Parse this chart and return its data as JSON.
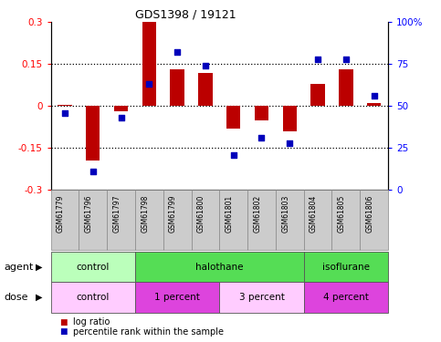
{
  "title": "GDS1398 / 19121",
  "samples": [
    "GSM61779",
    "GSM61796",
    "GSM61797",
    "GSM61798",
    "GSM61799",
    "GSM61800",
    "GSM61801",
    "GSM61802",
    "GSM61803",
    "GSM61804",
    "GSM61805",
    "GSM61806"
  ],
  "log_ratio": [
    0.005,
    -0.195,
    -0.02,
    0.3,
    0.13,
    0.12,
    -0.08,
    -0.05,
    -0.09,
    0.08,
    0.13,
    0.01
  ],
  "percentile_rank": [
    46,
    11,
    43,
    63,
    82,
    74,
    21,
    31,
    28,
    78,
    78,
    56
  ],
  "ylim_left": [
    -0.3,
    0.3
  ],
  "ylim_right": [
    0,
    100
  ],
  "yticks_left": [
    -0.3,
    -0.15,
    0,
    0.15,
    0.3
  ],
  "yticks_right": [
    0,
    25,
    50,
    75,
    100
  ],
  "hline_vals": [
    -0.15,
    0,
    0.15
  ],
  "bar_color": "#bb0000",
  "dot_color": "#0000bb",
  "agent_row": [
    {
      "label": "control",
      "start": 0,
      "end": 3,
      "color": "#bbffbb"
    },
    {
      "label": "halothane",
      "start": 3,
      "end": 9,
      "color": "#55dd55"
    },
    {
      "label": "isoflurane",
      "start": 9,
      "end": 12,
      "color": "#55dd55"
    }
  ],
  "dose_row": [
    {
      "label": "control",
      "start": 0,
      "end": 3,
      "color": "#ffccff"
    },
    {
      "label": "1 percent",
      "start": 3,
      "end": 6,
      "color": "#dd44dd"
    },
    {
      "label": "3 percent",
      "start": 6,
      "end": 9,
      "color": "#ffccff"
    },
    {
      "label": "4 percent",
      "start": 9,
      "end": 12,
      "color": "#dd44dd"
    }
  ],
  "legend_items": [
    {
      "label": "log ratio",
      "color": "#bb0000"
    },
    {
      "label": "percentile rank within the sample",
      "color": "#0000bb"
    }
  ],
  "fig_width": 4.83,
  "fig_height": 3.75,
  "dpi": 100
}
